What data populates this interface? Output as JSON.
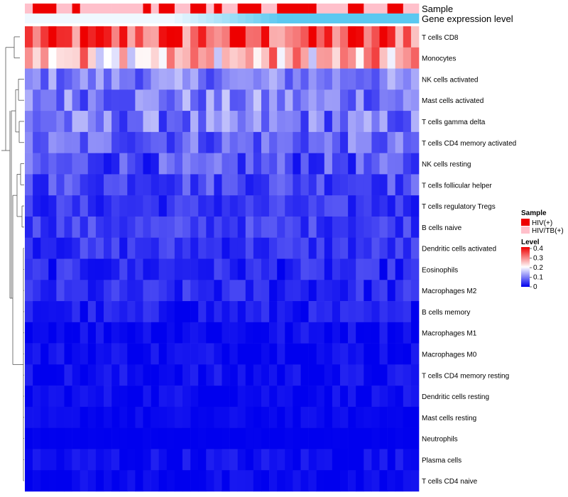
{
  "chart_data": {
    "type": "heatmap",
    "annotation_tracks": {
      "sample_label": "Sample",
      "gene_label": "Gene expression level"
    },
    "sample_groups": [
      "HIV(+)",
      "HIV/TB(+)"
    ],
    "sample_assignment": [
      1,
      0,
      0,
      0,
      1,
      1,
      0,
      1,
      1,
      1,
      1,
      1,
      1,
      1,
      1,
      0,
      1,
      0,
      0,
      1,
      1,
      0,
      0,
      1,
      0,
      1,
      1,
      0,
      0,
      0,
      1,
      1,
      0,
      0,
      0,
      0,
      0,
      1,
      1,
      1,
      1,
      0,
      0,
      1,
      1,
      1,
      0,
      0,
      1,
      1
    ],
    "sample_colors": {
      "HIV(+)": "#ee0000",
      "HIV/TB(+)": "#ffc0cb"
    },
    "rows": [
      "T cells CD8",
      "Monocytes",
      "NK cells activated",
      "Mast cells activated",
      "T cells gamma delta",
      "T cells CD4 memory activated",
      "NK cells resting",
      "T cells follicular helper",
      "T cells regulatory  Tregs",
      "B cells naive",
      "Dendritic cells activated",
      "Eosinophils",
      "Macrophages M2",
      "B cells memory",
      "Macrophages M1",
      "Macrophages M0",
      "T cells CD4 memory resting",
      "Dendritic cells resting",
      "Mast cells resting",
      "Neutrophils",
      "Plasma cells",
      "T cells CD4 naive"
    ],
    "row_means": [
      0.33,
      0.25,
      0.1,
      0.1,
      0.09,
      0.08,
      0.06,
      0.06,
      0.04,
      0.05,
      0.04,
      0.03,
      0.03,
      0.02,
      0.01,
      0.01,
      0.01,
      0.01,
      0.005,
      0.0,
      0.01,
      0.005
    ],
    "row_spread": [
      0.1,
      0.1,
      0.05,
      0.06,
      0.06,
      0.05,
      0.05,
      0.04,
      0.03,
      0.03,
      0.03,
      0.03,
      0.03,
      0.025,
      0.02,
      0.02,
      0.02,
      0.015,
      0.01,
      0.003,
      0.02,
      0.015
    ],
    "n_samples": 50,
    "legend": {
      "sample_title": "Sample",
      "level_title": "Level",
      "ticks": [
        "0.4",
        "0.3",
        "0.2",
        "0.1",
        "0"
      ],
      "range": [
        0,
        0.4
      ]
    },
    "colors": {
      "low": "#0000ee",
      "mid": "#ffffff",
      "high": "#ee0000",
      "gene_track": "#5bc8f0"
    }
  }
}
